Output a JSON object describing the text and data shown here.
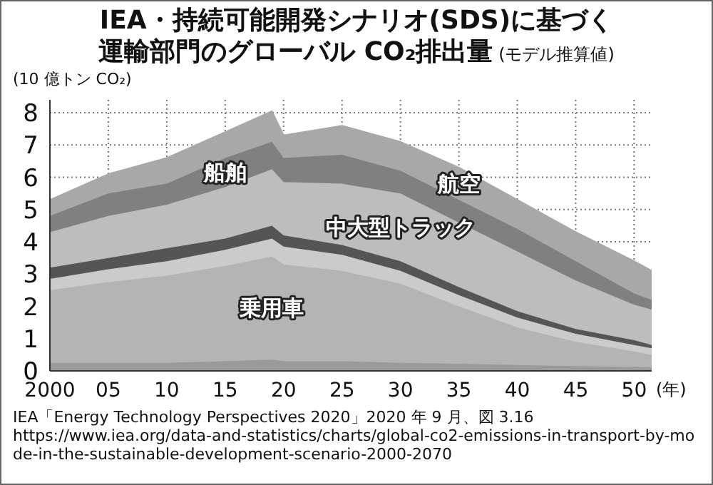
{
  "chart_data": {
    "type": "area",
    "title": "IEA・持続可能開発シナリオ(SDS)に基づく運輸部門のグローバル CO₂排出量",
    "subtitle": "(モデル推算値)",
    "ylabel": "(10 億トン CO₂)",
    "xlabel": "(年)",
    "x": [
      2000,
      2005,
      2010,
      2015,
      2019,
      2020,
      2025,
      2030,
      2035,
      2040,
      2045,
      2050,
      2051.5
    ],
    "stacked": true,
    "series": [
      {
        "color": "#9a9a9a",
        "values": [
          0.25,
          0.25,
          0.25,
          0.3,
          0.35,
          0.3,
          0.3,
          0.25,
          0.22,
          0.18,
          0.15,
          0.12,
          0.1
        ]
      },
      {
        "name": "乗用車",
        "color": "#b4b4b4",
        "values": [
          2.25,
          2.5,
          2.7,
          2.95,
          3.2,
          3.0,
          2.8,
          2.45,
          1.78,
          1.17,
          0.75,
          0.48,
          0.4
        ]
      },
      {
        "color": "#cbcbcb",
        "values": [
          0.35,
          0.4,
          0.45,
          0.5,
          0.55,
          0.55,
          0.5,
          0.4,
          0.35,
          0.3,
          0.25,
          0.2,
          0.2
        ]
      },
      {
        "color": "#555555",
        "values": [
          0.35,
          0.35,
          0.4,
          0.35,
          0.4,
          0.35,
          0.3,
          0.3,
          0.25,
          0.2,
          0.15,
          0.15,
          0.1
        ]
      },
      {
        "name": "中大型トラック",
        "color": "#bdbdbd",
        "values": [
          1.1,
          1.3,
          1.35,
          1.6,
          1.75,
          1.65,
          1.9,
          2.1,
          2.0,
          1.85,
          1.5,
          1.1,
          1.1
        ]
      },
      {
        "name": "船舶",
        "color": "#808080",
        "values": [
          0.5,
          0.7,
          0.65,
          0.9,
          0.85,
          0.75,
          0.9,
          0.7,
          0.7,
          0.7,
          0.6,
          0.35,
          0.3
        ]
      },
      {
        "name": "航空",
        "color": "#a8a8a8",
        "values": [
          0.5,
          0.6,
          0.8,
          0.8,
          0.95,
          0.7,
          0.9,
          0.9,
          1.0,
          0.9,
          0.9,
          1.0,
          0.9
        ]
      }
    ],
    "xlim": [
      2000,
      2051.5
    ],
    "xticks": [
      2000,
      {
        "value": 2005,
        "label": "05"
      },
      {
        "value": 2010,
        "label": "10"
      },
      {
        "value": 2015,
        "label": "15"
      },
      {
        "value": 2020,
        "label": "20"
      },
      {
        "value": 2025,
        "label": "25"
      },
      {
        "value": 2030,
        "label": "30"
      },
      {
        "value": 2035,
        "label": "35"
      },
      {
        "value": 2040,
        "label": "40"
      },
      {
        "value": 2045,
        "label": "45"
      },
      {
        "value": 2050,
        "label": "50"
      }
    ],
    "ylim": [
      0,
      8.4
    ],
    "yticks": [
      0,
      1,
      2,
      3,
      4,
      5,
      6,
      7,
      8
    ],
    "grid": true,
    "legend": false,
    "annotations": [
      "IEA「Energy Technology Perspectives 2020」2020 年 9 月、図 3.16",
      "https://www.iea.org/data-and-statistics/charts/global-co2-emissions-in-transport-by-mode-in-the-sustainable-development-scenario-2000-2070"
    ]
  }
}
